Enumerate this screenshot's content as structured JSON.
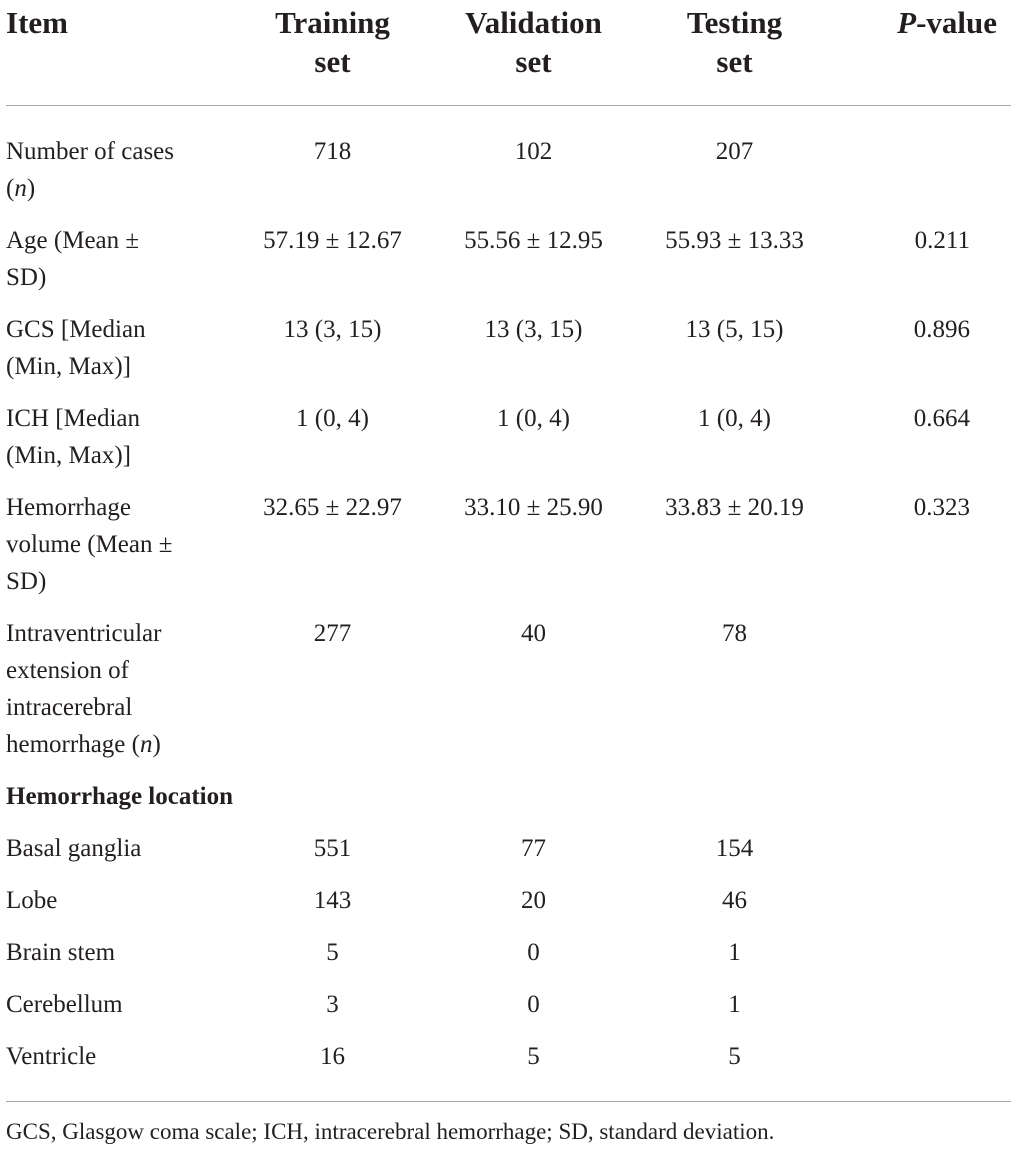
{
  "header": {
    "item": "Item",
    "training": "Training set",
    "validation": "Validation set",
    "testing": "Testing set",
    "pvalue_italic": "P",
    "pvalue_rest": "-value"
  },
  "rows": [
    {
      "label": "Number of cases",
      "label_italic": "n",
      "train": "718",
      "val": "102",
      "test": "207",
      "p": ""
    },
    {
      "label": "Age (Mean ± SD)",
      "train": "57.19 ± 12.67",
      "val": "55.56 ± 12.95",
      "test": "55.93 ± 13.33",
      "p": "0.211"
    },
    {
      "label": "GCS [Median (Min, Max)]",
      "train": "13 (3, 15)",
      "val": "13 (3, 15)",
      "test": "13 (5, 15)",
      "p": "0.896"
    },
    {
      "label": "ICH [Median (Min, Max)]",
      "train": "1 (0, 4)",
      "val": "1 (0, 4)",
      "test": "1 (0, 4)",
      "p": "0.664"
    },
    {
      "label": "Hemorrhage volume (Mean ± SD)",
      "train": "32.65 ± 22.97",
      "val": "33.10 ± 25.90",
      "test": "33.83 ± 20.19",
      "p": "0.323"
    },
    {
      "label": "Intraventricular extension of intracerebral hemorrhage",
      "label_italic": "n",
      "train": "277",
      "val": "40",
      "test": "78",
      "p": ""
    }
  ],
  "section": "Hemorrhage location",
  "location_rows": [
    {
      "label": "Basal ganglia",
      "train": "551",
      "val": "77",
      "test": "154"
    },
    {
      "label": "Lobe",
      "train": "143",
      "val": "20",
      "test": "46"
    },
    {
      "label": "Brain stem",
      "train": "5",
      "val": "0",
      "test": "1"
    },
    {
      "label": "Cerebellum",
      "train": "3",
      "val": "0",
      "test": "1"
    },
    {
      "label": "Ventricle",
      "train": "16",
      "val": "5",
      "test": "5"
    }
  ],
  "footnote": "GCS, Glasgow coma scale; ICH, intracerebral hemorrhage; SD, standard deviation."
}
